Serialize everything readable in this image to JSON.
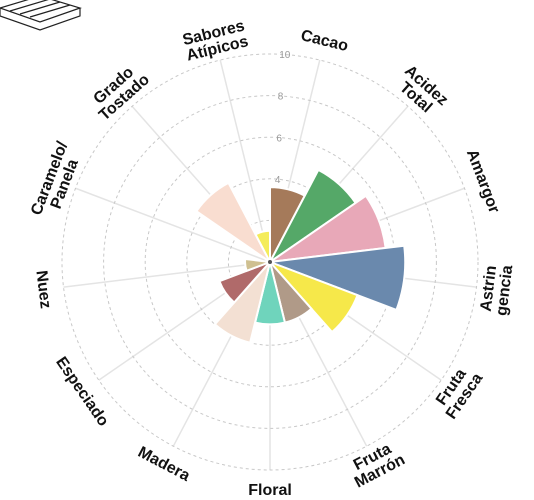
{
  "chart_data": {
    "type": "polar-bar",
    "categories": [
      [
        "Cacao"
      ],
      [
        "Acidez",
        "Total"
      ],
      [
        "Amargor"
      ],
      [
        "Astrin",
        "gencia"
      ],
      [
        "Fruta",
        "Fresca"
      ],
      [
        "Fruta",
        "Marrón"
      ],
      [
        "Floral"
      ],
      [
        "Madera"
      ],
      [
        "Especiado"
      ],
      [
        "Nuez"
      ],
      [
        "Caramelo/",
        "Panela"
      ],
      [
        "Grado",
        "Tostado"
      ],
      [
        "Sabores",
        "Atípicos"
      ]
    ],
    "values": [
      3.6,
      5,
      5.6,
      6.5,
      4.5,
      3,
      3,
      4,
      2.6,
      1.2,
      0,
      4.3,
      1.5
    ],
    "colors": [
      "#a57a5a",
      "#55a868",
      "#e8a8b8",
      "#6a89ad",
      "#f6e84a",
      "#b09a88",
      "#6fd4bc",
      "#f3e0d3",
      "#b06a6a",
      "#cfc091",
      "#c8a070",
      "#f9ddd0",
      "#f4ec5a"
    ],
    "ylim": [
      0,
      10
    ],
    "yticks": [
      2,
      4,
      6,
      8,
      10
    ],
    "grid": true
  }
}
